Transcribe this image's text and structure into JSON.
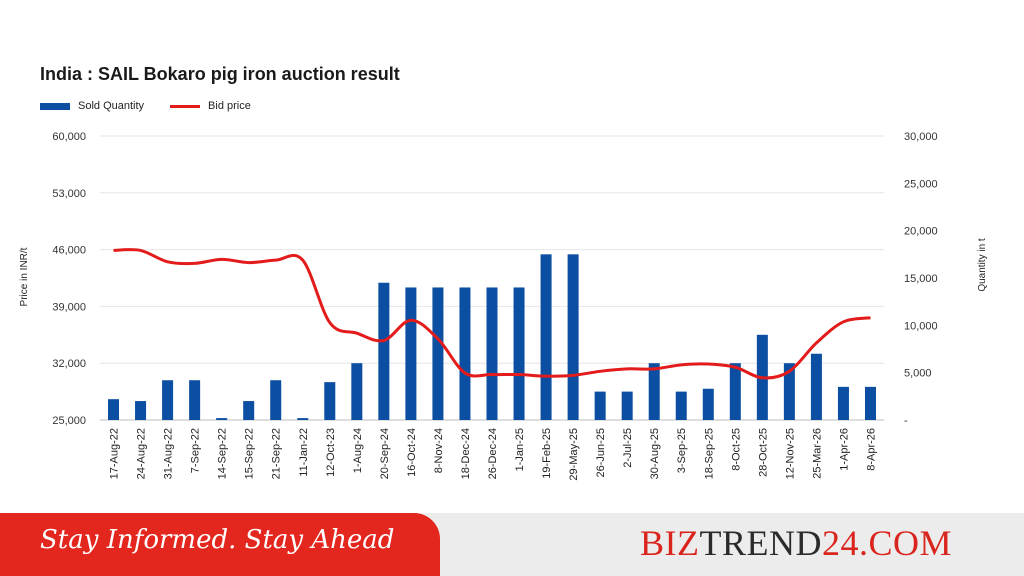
{
  "chart_data": {
    "type": "bar+line",
    "title": "India : SAIL Bokaro pig iron auction result",
    "legend": {
      "placement": "top-left",
      "bar_series_name": "Sold Quantity",
      "line_series_name": "Bid price"
    },
    "categories": [
      "17-Aug-22",
      "24-Aug-22",
      "31-Aug-22",
      "7-Sep-22",
      "14-Sep-22",
      "15-Sep-22",
      "21-Sep-22",
      "11-Jan-22",
      "12-Oct-23",
      "1-Aug-24",
      "20-Sep-24",
      "16-Oct-24",
      "8-Nov-24",
      "18-Dec-24",
      "26-Dec-24",
      "1-Jan-25",
      "19-Feb-25",
      "29-May-25",
      "26-Jun-25",
      "2-Jul-25",
      "30-Aug-25",
      "3-Sep-25",
      "18-Sep-25",
      "8-Oct-25",
      "28-Oct-25",
      "12-Nov-25",
      "25-Mar-26",
      "1-Apr-26",
      "8-Apr-26"
    ],
    "series": [
      {
        "name": "Sold Quantity",
        "type": "bar",
        "axis": "right",
        "color": "#0b4ea2",
        "values": [
          2200,
          2000,
          4200,
          4200,
          200,
          2000,
          4200,
          200,
          4000,
          6000,
          14500,
          14000,
          14000,
          14000,
          14000,
          14000,
          17500,
          17500,
          3000,
          3000,
          6000,
          3000,
          3300,
          6000,
          9000,
          6000,
          7000,
          3500,
          3500
        ]
      },
      {
        "name": "Bid price",
        "type": "line",
        "axis": "left",
        "color": "#e31b1b",
        "values": [
          45900,
          45900,
          44500,
          44300,
          44800,
          44400,
          44700,
          44700,
          37000,
          35700,
          34800,
          37300,
          35000,
          30800,
          30600,
          30600,
          30400,
          30500,
          31000,
          31300,
          31300,
          31800,
          31900,
          31500,
          30200,
          31000,
          34500,
          37100,
          37600
        ]
      }
    ],
    "y_left": {
      "label": "Price in INR/t",
      "min": 25000,
      "max": 60000,
      "ticks": [
        "60,000",
        "53,000",
        "46,000",
        "39,000",
        "32,000",
        "25,000"
      ],
      "tick_values": [
        60000,
        53000,
        46000,
        39000,
        32000,
        25000
      ]
    },
    "y_right": {
      "label": "Quantity in t",
      "min": 0,
      "max": 30000,
      "ticks": [
        "30,000",
        "25,000",
        "20,000",
        "15,000",
        "10,000",
        "5,000",
        "-"
      ],
      "tick_values": [
        30000,
        25000,
        20000,
        15000,
        10000,
        5000,
        0
      ]
    },
    "grid": true
  },
  "footer": {
    "tagline": "Stay Informed. Stay Ahead",
    "brand_part1": "BIZ",
    "brand_part2": "TREND",
    "brand_part3": "24.COM"
  }
}
